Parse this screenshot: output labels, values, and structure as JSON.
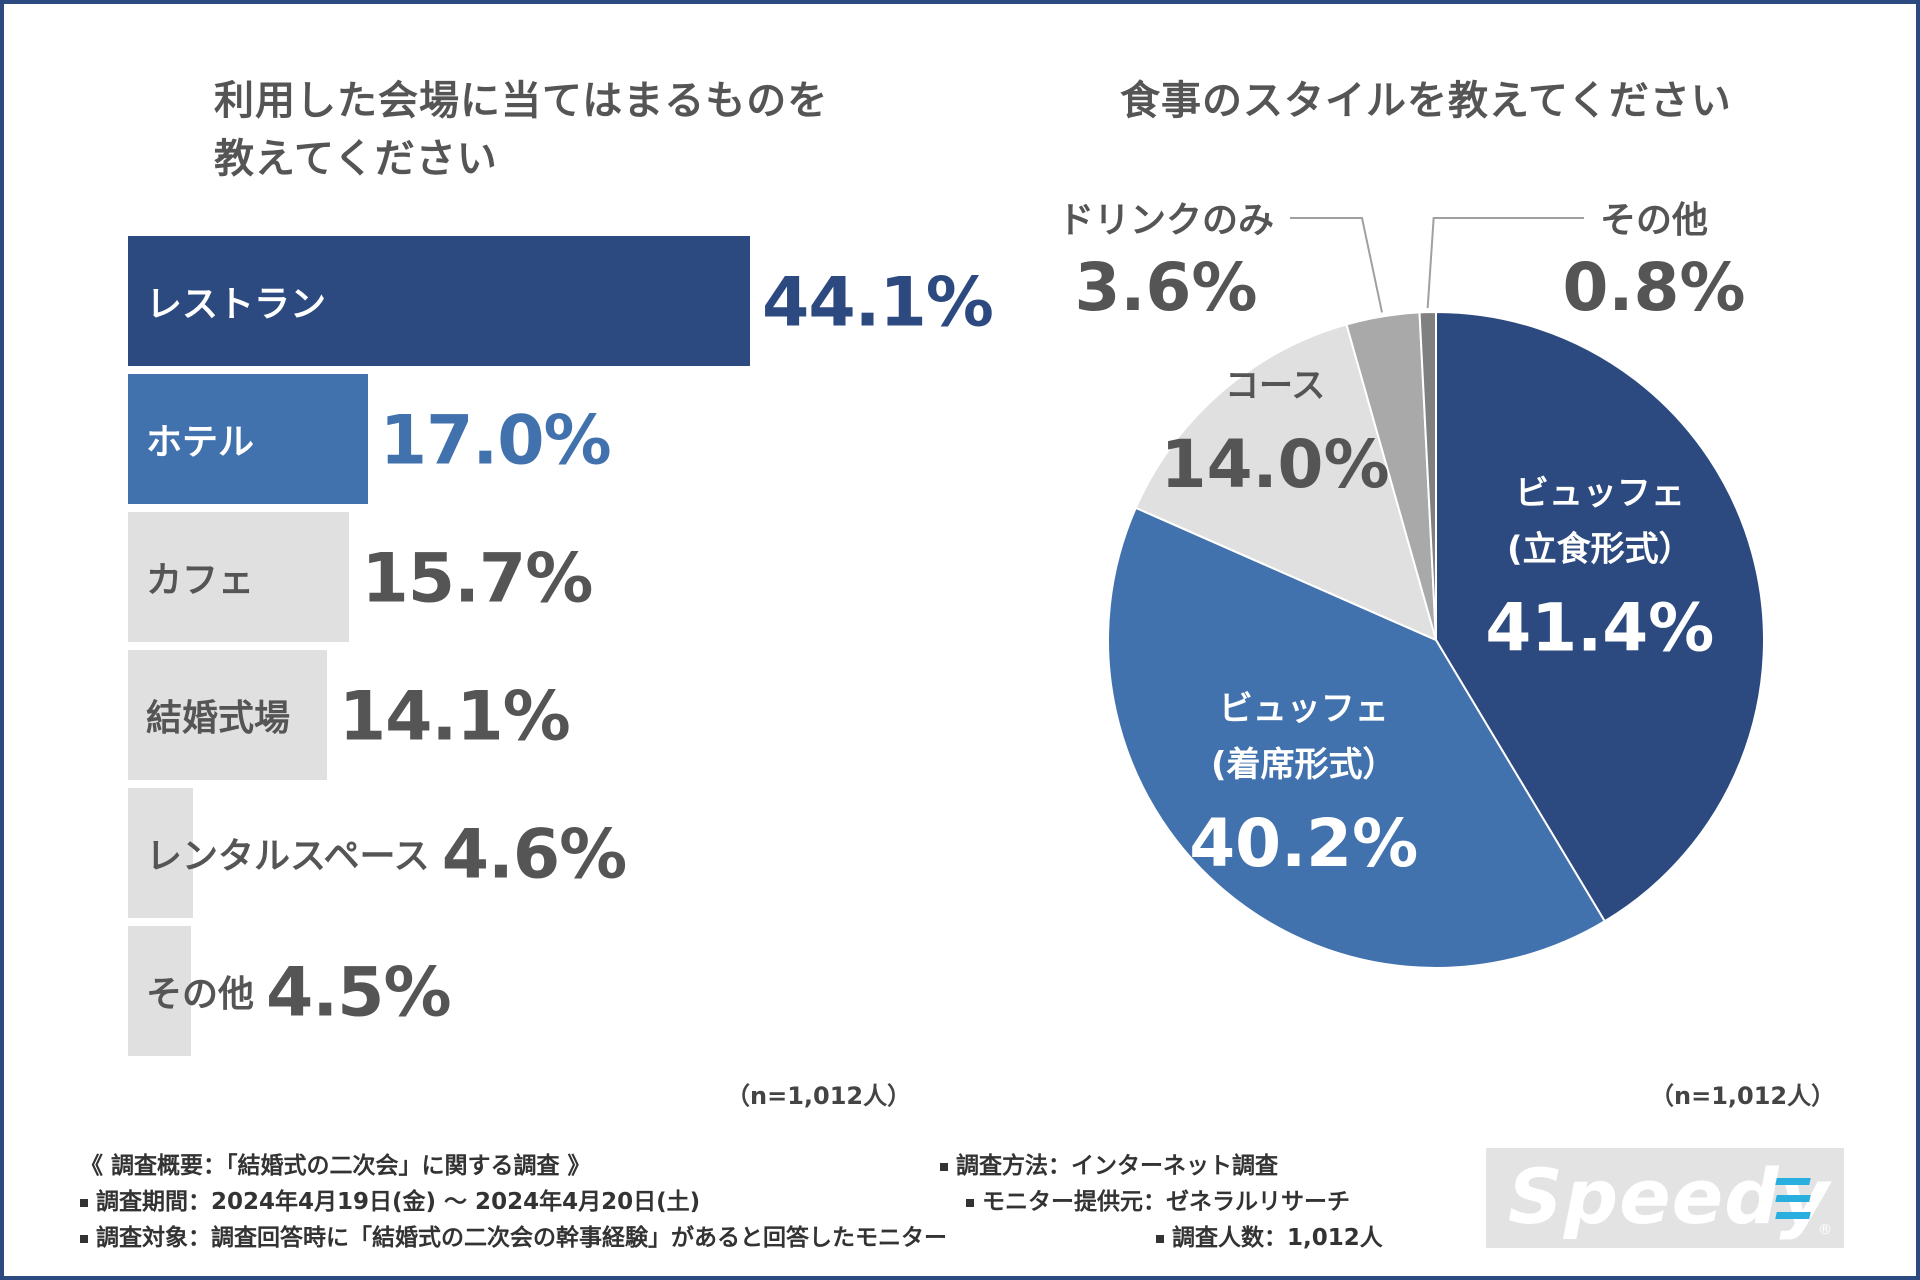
{
  "chart_data": [
    {
      "type": "bar",
      "orientation": "horizontal",
      "title": "利用した会場に当てはまるものを\n教えてください",
      "categories": [
        "レストラン",
        "ホテル",
        "カフェ",
        "結婚式場",
        "レンタルスペース",
        "その他"
      ],
      "values": [
        44.1,
        17.0,
        15.7,
        14.1,
        4.6,
        4.5
      ],
      "value_labels": [
        "44.1%",
        "17.0%",
        "15.7%",
        "14.1%",
        "4.6%",
        "4.5%"
      ],
      "colors": [
        "#2d4a80",
        "#4272ad",
        "#e0e0e0",
        "#e0e0e0",
        "#e0e0e0",
        "#e0e0e0"
      ],
      "label_colors": [
        "#ffffff",
        "#ffffff",
        "#555555",
        "#555555",
        "#555555",
        "#555555"
      ],
      "value_colors": [
        "#2d4a80",
        "#4272ad",
        "#555555",
        "#555555",
        "#555555",
        "#555555"
      ],
      "n_note": "（n=1,012人）"
    },
    {
      "type": "pie",
      "title": "食事のスタイルを教えてください",
      "slices": [
        {
          "lines": [
            "ビュッフェ",
            "(立食形式）"
          ],
          "value": 41.4,
          "value_label": "41.4%",
          "color": "#2d4a80",
          "text_color": "#ffffff"
        },
        {
          "lines": [
            "ビュッフェ",
            "(着席形式）"
          ],
          "value": 40.2,
          "value_label": "40.2%",
          "color": "#4272ad",
          "text_color": "#ffffff"
        },
        {
          "lines": [
            "コース"
          ],
          "value": 14.0,
          "value_label": "14.0%",
          "color": "#e0e0e0",
          "text_color": "#555555"
        },
        {
          "lines": [
            "ドリンクのみ"
          ],
          "value": 3.6,
          "value_label": "3.6%",
          "color": "#a9a9a9",
          "text_color": "#555555"
        },
        {
          "lines": [
            "その他"
          ],
          "value": 0.8,
          "value_label": "0.8%",
          "color": "#808080",
          "text_color": "#555555"
        }
      ],
      "n_note": "（n=1,012人）"
    }
  ],
  "footer": {
    "overview": "《 調査概要：「結婚式の二次会」に関する調査 》",
    "period": "調査期間：2024年4月19日(金) 〜 2024年4月20日(土)",
    "target": "調査対象：調査回答時に「結婚式の二次会の幹事経験」があると回答したモニター",
    "method": "調査方法：インターネット調査",
    "provider": "モニター提供元：ゼネラルリサーチ",
    "count": "調査人数：1,012人"
  },
  "logo": {
    "text": "Speedy",
    "reg": "®"
  }
}
